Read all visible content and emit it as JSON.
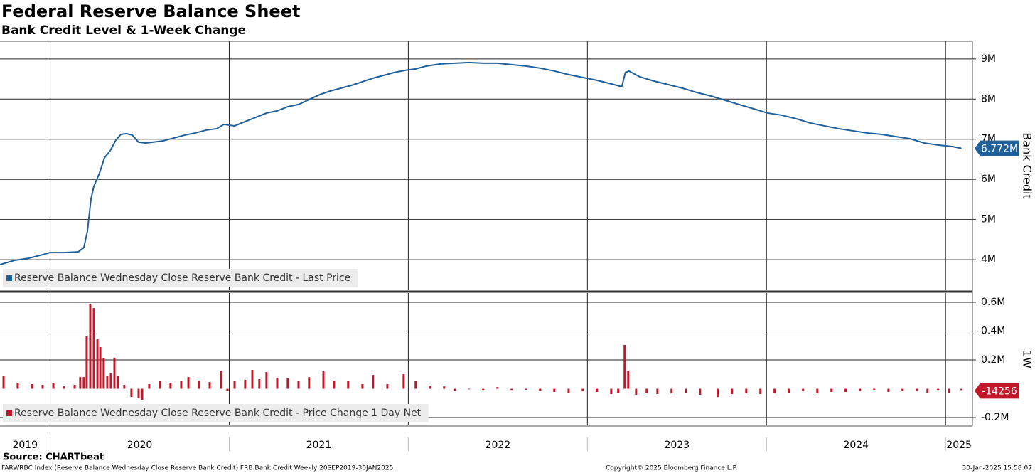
{
  "source": "Source: CHARTbeat",
  "footer": {
    "left": "FARWRBC Index (Reserve Balance Wednesday Close Reserve Bank Credit) FRB Bank Credit  Weekly 20SEP2019-30JAN2025",
    "center": "Copyright© 2025 Bloomberg Finance L.P.",
    "right": "30-Jan-2025 15:58:07"
  },
  "chart_data": [
    {
      "type": "line",
      "title": "Federal Reserve Balance Sheet",
      "subtitle": "Bank Credit Level & 1-Week Change",
      "y_label": "Bank Credit",
      "x": [
        2019.72,
        2019.799,
        2019.879,
        2019.958,
        2019.998,
        2020.077,
        2020.157,
        2020.188,
        2020.208,
        2020.228,
        2020.244,
        2020.276,
        2020.303,
        2020.335,
        2020.367,
        2020.395,
        2020.426,
        2020.458,
        2020.494,
        2020.533,
        2020.573,
        2020.633,
        2020.692,
        2020.752,
        2020.811,
        2020.871,
        2020.93,
        2020.97,
        2021.03,
        2021.089,
        2021.149,
        2021.208,
        2021.268,
        2021.327,
        2021.387,
        2021.446,
        2021.506,
        2021.565,
        2021.625,
        2021.684,
        2021.744,
        2021.803,
        2021.863,
        2021.922,
        2021.982,
        2022.041,
        2022.101,
        2022.18,
        2022.26,
        2022.339,
        2022.418,
        2022.498,
        2022.577,
        2022.657,
        2022.736,
        2022.815,
        2022.895,
        2022.974,
        2023.053,
        2023.133,
        2023.192,
        2023.212,
        2023.232,
        2023.291,
        2023.371,
        2023.45,
        2023.53,
        2023.609,
        2023.688,
        2023.768,
        2023.847,
        2023.927,
        2024.006,
        2024.085,
        2024.165,
        2024.244,
        2024.323,
        2024.403,
        2024.482,
        2024.561,
        2024.641,
        2024.72,
        2024.8,
        2024.879,
        2024.958,
        2025.038,
        2025.089
      ],
      "series": [
        {
          "name": "Reserve Balance Wednesday Close Reserve Bank Credit - Last Price",
          "color": "#1f5f9a",
          "last_label": "6.772M",
          "values": [
            3876000,
            3982000,
            4035000,
            4124000,
            4177000,
            4177000,
            4195000,
            4301000,
            4709000,
            5507000,
            5826000,
            6163000,
            6535000,
            6713000,
            6979000,
            7121000,
            7138000,
            7103000,
            6926000,
            6908000,
            6926000,
            6961000,
            7032000,
            7103000,
            7156000,
            7227000,
            7262000,
            7369000,
            7333000,
            7440000,
            7546000,
            7652000,
            7706000,
            7812000,
            7865000,
            7989000,
            8113000,
            8202000,
            8273000,
            8344000,
            8433000,
            8521000,
            8592000,
            8663000,
            8716000,
            8752000,
            8823000,
            8876000,
            8894000,
            8911000,
            8894000,
            8894000,
            8858000,
            8823000,
            8770000,
            8699000,
            8610000,
            8539000,
            8468000,
            8379000,
            8309000,
            8663000,
            8699000,
            8557000,
            8450000,
            8362000,
            8273000,
            8167000,
            8078000,
            7972000,
            7865000,
            7759000,
            7652000,
            7599000,
            7511000,
            7404000,
            7333000,
            7262000,
            7209000,
            7156000,
            7121000,
            7067000,
            7014000,
            6908000,
            6855000,
            6819000,
            6772000
          ]
        }
      ],
      "xlim": [
        2019.72,
        2025.15
      ],
      "ylim": [
        3240000,
        9440000
      ],
      "yticks": [
        {
          "value": 4000000,
          "label": "4M"
        },
        {
          "value": 5000000,
          "label": "5M"
        },
        {
          "value": 6000000,
          "label": "6M"
        },
        {
          "value": 7000000,
          "label": "7M"
        },
        {
          "value": 8000000,
          "label": "8M"
        },
        {
          "value": 9000000,
          "label": "9M"
        }
      ],
      "grid": true,
      "legend": "bottom-left"
    },
    {
      "type": "bar",
      "y_label": "1W",
      "x": [
        2019.74,
        2019.819,
        2019.899,
        2019.958,
        2020.018,
        2020.077,
        2020.137,
        2020.168,
        2020.188,
        2020.204,
        2020.224,
        2020.244,
        2020.264,
        2020.28,
        2020.299,
        2020.319,
        2020.339,
        2020.359,
        2020.379,
        2020.414,
        2020.454,
        2020.494,
        2020.514,
        2020.553,
        2020.613,
        2020.672,
        2020.732,
        2020.772,
        2020.831,
        2020.891,
        2020.954,
        2020.99,
        2021.03,
        2021.089,
        2021.129,
        2021.168,
        2021.208,
        2021.268,
        2021.327,
        2021.387,
        2021.446,
        2021.526,
        2021.585,
        2021.664,
        2021.744,
        2021.803,
        2021.883,
        2021.974,
        2022.041,
        2022.121,
        2022.2,
        2022.26,
        2022.339,
        2022.418,
        2022.498,
        2022.577,
        2022.657,
        2022.736,
        2022.815,
        2022.895,
        2022.974,
        2023.053,
        2023.133,
        2023.172,
        2023.208,
        2023.228,
        2023.272,
        2023.331,
        2023.391,
        2023.47,
        2023.549,
        2023.629,
        2023.728,
        2023.807,
        2023.887,
        2023.966,
        2024.045,
        2024.125,
        2024.204,
        2024.284,
        2024.363,
        2024.442,
        2024.522,
        2024.601,
        2024.681,
        2024.76,
        2024.839,
        2024.899,
        2024.958,
        2025.018,
        2025.089
      ],
      "series": [
        {
          "name": "Reserve Balance Wednesday Close Reserve Bank Credit - Price Change 1 Day Net",
          "color": "#c0182a",
          "values": [
            91000,
            42000,
            32000,
            27000,
            42000,
            17000,
            27000,
            81000,
            81000,
            363000,
            585000,
            560000,
            343000,
            289000,
            210000,
            91000,
            106000,
            215000,
            91000,
            27000,
            -57000,
            -67000,
            -77000,
            32000,
            52000,
            42000,
            52000,
            81000,
            57000,
            47000,
            126000,
            -17000,
            52000,
            62000,
            131000,
            67000,
            116000,
            77000,
            72000,
            52000,
            81000,
            121000,
            57000,
            52000,
            32000,
            96000,
            32000,
            101000,
            52000,
            22000,
            17000,
            -17000,
            -3000,
            -12000,
            12000,
            -12000,
            -7000,
            -17000,
            -22000,
            -27000,
            -17000,
            -22000,
            -37000,
            -27000,
            304000,
            126000,
            -42000,
            -32000,
            -37000,
            -32000,
            -27000,
            -42000,
            -57000,
            -37000,
            -32000,
            -37000,
            -32000,
            -27000,
            -17000,
            -32000,
            -22000,
            -22000,
            -17000,
            -12000,
            -22000,
            -17000,
            -17000,
            -27000,
            -12000,
            -27000,
            -14256
          ]
        }
      ],
      "xlim": [
        2019.72,
        2025.15
      ],
      "ylim": [
        -254000,
        664000
      ],
      "yticks": [
        {
          "value": -200000,
          "label": "-0.2M"
        },
        {
          "value": 200000,
          "label": "0.2M"
        },
        {
          "value": 400000,
          "label": "0.4M"
        },
        {
          "value": 600000,
          "label": "0.6M"
        }
      ],
      "xticks": [
        2019,
        2020,
        2021,
        2022,
        2023,
        2024,
        2025
      ],
      "grid": true,
      "legend": "bottom-left"
    }
  ]
}
